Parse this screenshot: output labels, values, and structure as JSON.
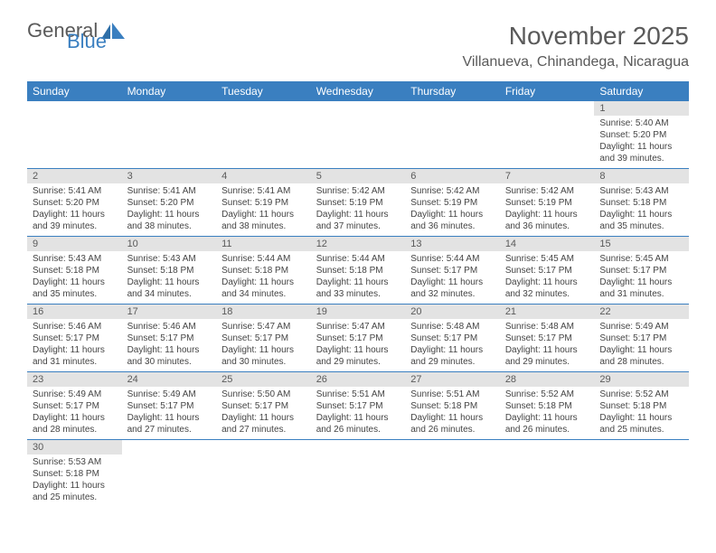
{
  "brand": {
    "general": "General",
    "blue": "Blue"
  },
  "header": {
    "month_title": "November 2025",
    "location": "Villanueva, Chinandega, Nicaragua"
  },
  "colors": {
    "header_bg": "#3a7fc0",
    "header_text": "#ffffff",
    "daynum_bg": "#e3e3e3",
    "text": "#5a5a5a",
    "row_border": "#3a7fc0"
  },
  "weekdays": [
    "Sunday",
    "Monday",
    "Tuesday",
    "Wednesday",
    "Thursday",
    "Friday",
    "Saturday"
  ],
  "weeks": [
    [
      null,
      null,
      null,
      null,
      null,
      null,
      {
        "n": "1",
        "sr": "Sunrise: 5:40 AM",
        "ss": "Sunset: 5:20 PM",
        "dl": "Daylight: 11 hours and 39 minutes."
      }
    ],
    [
      {
        "n": "2",
        "sr": "Sunrise: 5:41 AM",
        "ss": "Sunset: 5:20 PM",
        "dl": "Daylight: 11 hours and 39 minutes."
      },
      {
        "n": "3",
        "sr": "Sunrise: 5:41 AM",
        "ss": "Sunset: 5:20 PM",
        "dl": "Daylight: 11 hours and 38 minutes."
      },
      {
        "n": "4",
        "sr": "Sunrise: 5:41 AM",
        "ss": "Sunset: 5:19 PM",
        "dl": "Daylight: 11 hours and 38 minutes."
      },
      {
        "n": "5",
        "sr": "Sunrise: 5:42 AM",
        "ss": "Sunset: 5:19 PM",
        "dl": "Daylight: 11 hours and 37 minutes."
      },
      {
        "n": "6",
        "sr": "Sunrise: 5:42 AM",
        "ss": "Sunset: 5:19 PM",
        "dl": "Daylight: 11 hours and 36 minutes."
      },
      {
        "n": "7",
        "sr": "Sunrise: 5:42 AM",
        "ss": "Sunset: 5:19 PM",
        "dl": "Daylight: 11 hours and 36 minutes."
      },
      {
        "n": "8",
        "sr": "Sunrise: 5:43 AM",
        "ss": "Sunset: 5:18 PM",
        "dl": "Daylight: 11 hours and 35 minutes."
      }
    ],
    [
      {
        "n": "9",
        "sr": "Sunrise: 5:43 AM",
        "ss": "Sunset: 5:18 PM",
        "dl": "Daylight: 11 hours and 35 minutes."
      },
      {
        "n": "10",
        "sr": "Sunrise: 5:43 AM",
        "ss": "Sunset: 5:18 PM",
        "dl": "Daylight: 11 hours and 34 minutes."
      },
      {
        "n": "11",
        "sr": "Sunrise: 5:44 AM",
        "ss": "Sunset: 5:18 PM",
        "dl": "Daylight: 11 hours and 34 minutes."
      },
      {
        "n": "12",
        "sr": "Sunrise: 5:44 AM",
        "ss": "Sunset: 5:18 PM",
        "dl": "Daylight: 11 hours and 33 minutes."
      },
      {
        "n": "13",
        "sr": "Sunrise: 5:44 AM",
        "ss": "Sunset: 5:17 PM",
        "dl": "Daylight: 11 hours and 32 minutes."
      },
      {
        "n": "14",
        "sr": "Sunrise: 5:45 AM",
        "ss": "Sunset: 5:17 PM",
        "dl": "Daylight: 11 hours and 32 minutes."
      },
      {
        "n": "15",
        "sr": "Sunrise: 5:45 AM",
        "ss": "Sunset: 5:17 PM",
        "dl": "Daylight: 11 hours and 31 minutes."
      }
    ],
    [
      {
        "n": "16",
        "sr": "Sunrise: 5:46 AM",
        "ss": "Sunset: 5:17 PM",
        "dl": "Daylight: 11 hours and 31 minutes."
      },
      {
        "n": "17",
        "sr": "Sunrise: 5:46 AM",
        "ss": "Sunset: 5:17 PM",
        "dl": "Daylight: 11 hours and 30 minutes."
      },
      {
        "n": "18",
        "sr": "Sunrise: 5:47 AM",
        "ss": "Sunset: 5:17 PM",
        "dl": "Daylight: 11 hours and 30 minutes."
      },
      {
        "n": "19",
        "sr": "Sunrise: 5:47 AM",
        "ss": "Sunset: 5:17 PM",
        "dl": "Daylight: 11 hours and 29 minutes."
      },
      {
        "n": "20",
        "sr": "Sunrise: 5:48 AM",
        "ss": "Sunset: 5:17 PM",
        "dl": "Daylight: 11 hours and 29 minutes."
      },
      {
        "n": "21",
        "sr": "Sunrise: 5:48 AM",
        "ss": "Sunset: 5:17 PM",
        "dl": "Daylight: 11 hours and 29 minutes."
      },
      {
        "n": "22",
        "sr": "Sunrise: 5:49 AM",
        "ss": "Sunset: 5:17 PM",
        "dl": "Daylight: 11 hours and 28 minutes."
      }
    ],
    [
      {
        "n": "23",
        "sr": "Sunrise: 5:49 AM",
        "ss": "Sunset: 5:17 PM",
        "dl": "Daylight: 11 hours and 28 minutes."
      },
      {
        "n": "24",
        "sr": "Sunrise: 5:49 AM",
        "ss": "Sunset: 5:17 PM",
        "dl": "Daylight: 11 hours and 27 minutes."
      },
      {
        "n": "25",
        "sr": "Sunrise: 5:50 AM",
        "ss": "Sunset: 5:17 PM",
        "dl": "Daylight: 11 hours and 27 minutes."
      },
      {
        "n": "26",
        "sr": "Sunrise: 5:51 AM",
        "ss": "Sunset: 5:17 PM",
        "dl": "Daylight: 11 hours and 26 minutes."
      },
      {
        "n": "27",
        "sr": "Sunrise: 5:51 AM",
        "ss": "Sunset: 5:18 PM",
        "dl": "Daylight: 11 hours and 26 minutes."
      },
      {
        "n": "28",
        "sr": "Sunrise: 5:52 AM",
        "ss": "Sunset: 5:18 PM",
        "dl": "Daylight: 11 hours and 26 minutes."
      },
      {
        "n": "29",
        "sr": "Sunrise: 5:52 AM",
        "ss": "Sunset: 5:18 PM",
        "dl": "Daylight: 11 hours and 25 minutes."
      }
    ],
    [
      {
        "n": "30",
        "sr": "Sunrise: 5:53 AM",
        "ss": "Sunset: 5:18 PM",
        "dl": "Daylight: 11 hours and 25 minutes."
      },
      null,
      null,
      null,
      null,
      null,
      null
    ]
  ]
}
